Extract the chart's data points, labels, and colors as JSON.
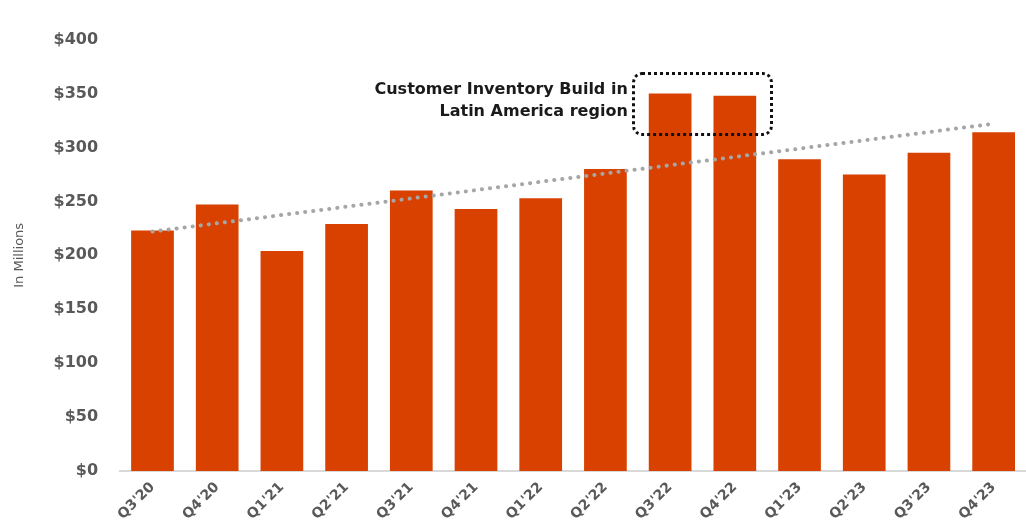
{
  "chart_data": {
    "type": "bar",
    "ylabel": "In Millions",
    "categories": [
      "Q3'20",
      "Q4'20",
      "Q1'21",
      "Q2'21",
      "Q3'21",
      "Q4'21",
      "Q1'22",
      "Q2'22",
      "Q3'22",
      "Q4'22",
      "Q1'23",
      "Q2'23",
      "Q3'23",
      "Q4'23"
    ],
    "series": [
      {
        "color": "#d84100",
        "values": [
          223,
          247,
          204,
          229,
          260,
          243,
          253,
          280,
          350,
          348,
          289,
          275,
          295,
          314
        ]
      },
      {
        "type": "line",
        "color": "#a6a6a6",
        "line_style": "dotted",
        "marker": "none",
        "x": [
          "Q3'20",
          "Q4'23"
        ],
        "values": [
          222,
          322
        ]
      }
    ],
    "ylim": [
      0,
      400
    ],
    "yticks": [
      {
        "value": 0,
        "label": "$0"
      },
      {
        "value": 50,
        "label": "$50"
      },
      {
        "value": 100,
        "label": "$100"
      },
      {
        "value": 150,
        "label": "$150"
      },
      {
        "value": 200,
        "label": "$200"
      },
      {
        "value": 250,
        "label": "$250"
      },
      {
        "value": 300,
        "label": "$300"
      },
      {
        "value": 350,
        "label": "$350"
      },
      {
        "value": 400,
        "label": "$400"
      }
    ],
    "grid": false,
    "legend": false,
    "annotations": [
      {
        "text": "Customer Inventory Build in Latin America region",
        "x": "Q3'22",
        "y": 350
      }
    ]
  }
}
